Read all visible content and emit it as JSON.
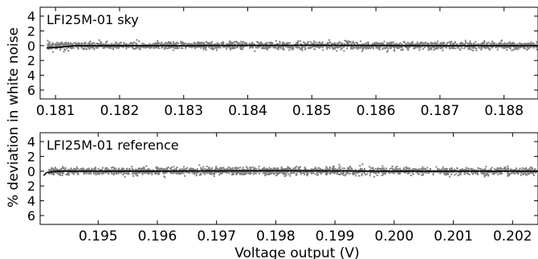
{
  "chart_data": [
    {
      "type": "scatter",
      "title": "LFI25M-01 sky",
      "xlabel": "",
      "ylabel": "% deviation in white noise",
      "xlim": [
        0.18076,
        0.18853
      ],
      "ylim": [
        -7.2,
        5.2
      ],
      "yticks": [
        4,
        2,
        0,
        -2,
        -4,
        -6
      ],
      "ytick_labels": [
        "4",
        "2",
        "0",
        "2",
        "4",
        "6"
      ],
      "xticks": [
        0.181,
        0.182,
        0.183,
        0.184,
        0.185,
        0.186,
        0.187,
        0.188
      ],
      "xtick_labels": [
        "0.181",
        "0.182",
        "0.183",
        "0.184",
        "0.185",
        "0.186",
        "0.187",
        "0.188"
      ],
      "grid": false,
      "colors": {
        "points": "#808080",
        "fit": "#000000"
      },
      "series": [
        {
          "style": "points",
          "band_half_width": 0.45,
          "x_start": 0.18086,
          "x_end": 0.18853
        },
        {
          "style": "fit line",
          "x": [
            0.18086,
            0.1811,
            0.1813,
            0.183,
            0.185,
            0.187,
            0.18853
          ],
          "y": [
            -0.3,
            -0.2,
            0.0,
            0.0,
            0.05,
            0.0,
            0.0
          ]
        }
      ]
    },
    {
      "type": "scatter",
      "title": "LFI25M-01 reference",
      "xlabel": "Voltage output (V)",
      "ylabel": "% deviation in white noise",
      "xlim": [
        0.19402,
        0.20243
      ],
      "ylim": [
        -7.2,
        5.2
      ],
      "yticks": [
        4,
        2,
        0,
        -2,
        -4,
        -6
      ],
      "ytick_labels": [
        "4",
        "2",
        "0",
        "2",
        "4",
        "6"
      ],
      "xticks": [
        0.195,
        0.196,
        0.197,
        0.198,
        0.199,
        0.2,
        0.201,
        0.202
      ],
      "xtick_labels": [
        "0.195",
        "0.196",
        "0.197",
        "0.198",
        "0.199",
        "0.200",
        "0.201",
        "0.202"
      ],
      "grid": false,
      "colors": {
        "points": "#808080",
        "fit": "#000000"
      },
      "series": [
        {
          "style": "points",
          "band_half_width": 0.45,
          "x_start": 0.19415,
          "x_end": 0.20243
        },
        {
          "style": "fit line",
          "x": [
            0.19408,
            0.19413,
            0.1943,
            0.196,
            0.198,
            0.2,
            0.20243
          ],
          "y": [
            -0.6,
            -0.2,
            0.0,
            0.0,
            0.05,
            0.0,
            0.0
          ]
        }
      ]
    }
  ]
}
